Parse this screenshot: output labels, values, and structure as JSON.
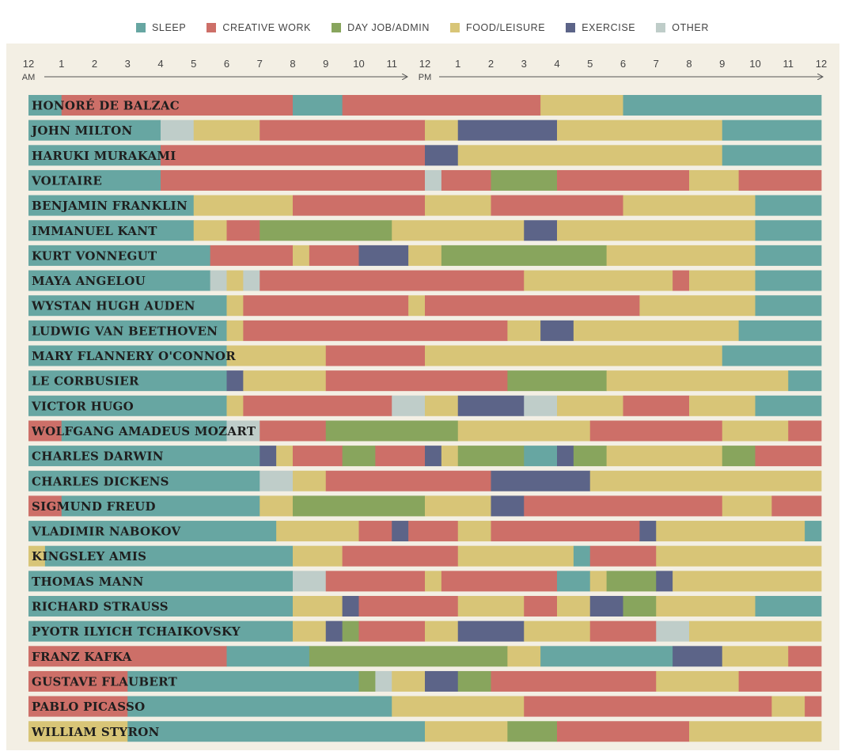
{
  "legend": [
    {
      "key": "S",
      "label": "SLEEP",
      "color": "#67a6a2"
    },
    {
      "key": "C",
      "label": "CREATIVE WORK",
      "color": "#cd6f68"
    },
    {
      "key": "D",
      "label": "DAY JOB/ADMIN",
      "color": "#88a55d"
    },
    {
      "key": "F",
      "label": "FOOD/LEISURE",
      "color": "#d8c577"
    },
    {
      "key": "E",
      "label": "EXERCISE",
      "color": "#5c6488"
    },
    {
      "key": "O",
      "label": "OTHER",
      "color": "#bfcdc9"
    }
  ],
  "chart_data": {
    "type": "timeline",
    "x_unit": "hour of day (0-24)",
    "xlim": [
      0,
      24
    ],
    "hour_ticks": [
      "12",
      "1",
      "2",
      "3",
      "4",
      "5",
      "6",
      "7",
      "8",
      "9",
      "10",
      "11",
      "12",
      "1",
      "2",
      "3",
      "4",
      "5",
      "6",
      "7",
      "8",
      "9",
      "10",
      "11",
      "12"
    ],
    "am_label": "AM",
    "pm_label": "PM",
    "rows": [
      {
        "name": "HONORÉ DE BALZAC",
        "segments": [
          [
            "S",
            0,
            1
          ],
          [
            "C",
            1,
            8
          ],
          [
            "S",
            8,
            9.5
          ],
          [
            "C",
            9.5,
            15.5
          ],
          [
            "F",
            15.5,
            18
          ],
          [
            "S",
            18,
            24
          ]
        ]
      },
      {
        "name": "JOHN MILTON",
        "segments": [
          [
            "S",
            0,
            4
          ],
          [
            "O",
            4,
            5
          ],
          [
            "F",
            5,
            7
          ],
          [
            "C",
            7,
            12
          ],
          [
            "F",
            12,
            13
          ],
          [
            "E",
            13,
            16
          ],
          [
            "F",
            16,
            21
          ],
          [
            "S",
            21,
            24
          ]
        ]
      },
      {
        "name": "HARUKI MURAKAMI",
        "segments": [
          [
            "S",
            0,
            4
          ],
          [
            "C",
            4,
            12
          ],
          [
            "E",
            12,
            13
          ],
          [
            "F",
            13,
            21
          ],
          [
            "S",
            21,
            24
          ]
        ]
      },
      {
        "name": "VOLTAIRE",
        "segments": [
          [
            "S",
            0,
            4
          ],
          [
            "C",
            4,
            12
          ],
          [
            "O",
            12,
            12.5
          ],
          [
            "C",
            12.5,
            14
          ],
          [
            "D",
            14,
            16
          ],
          [
            "C",
            16,
            20
          ],
          [
            "F",
            20,
            21.5
          ],
          [
            "C",
            21.5,
            24
          ]
        ]
      },
      {
        "name": "BENJAMIN FRANKLIN",
        "segments": [
          [
            "S",
            0,
            5
          ],
          [
            "F",
            5,
            8
          ],
          [
            "C",
            8,
            12
          ],
          [
            "F",
            12,
            14
          ],
          [
            "C",
            14,
            18
          ],
          [
            "F",
            18,
            22
          ],
          [
            "S",
            22,
            24
          ]
        ]
      },
      {
        "name": "IMMANUEL KANT",
        "segments": [
          [
            "S",
            0,
            5
          ],
          [
            "F",
            5,
            6
          ],
          [
            "C",
            6,
            7
          ],
          [
            "D",
            7,
            11
          ],
          [
            "F",
            11,
            15
          ],
          [
            "E",
            15,
            16
          ],
          [
            "F",
            16,
            22
          ],
          [
            "S",
            22,
            24
          ]
        ]
      },
      {
        "name": "KURT VONNEGUT",
        "segments": [
          [
            "S",
            0,
            5.5
          ],
          [
            "C",
            5.5,
            8
          ],
          [
            "F",
            8,
            8.5
          ],
          [
            "C",
            8.5,
            10
          ],
          [
            "E",
            10,
            11.5
          ],
          [
            "F",
            11.5,
            12.5
          ],
          [
            "D",
            12.5,
            17.5
          ],
          [
            "F",
            17.5,
            22
          ],
          [
            "S",
            22,
            24
          ]
        ]
      },
      {
        "name": "MAYA ANGELOU",
        "segments": [
          [
            "S",
            0,
            5.5
          ],
          [
            "O",
            5.5,
            6
          ],
          [
            "F",
            6,
            6.5
          ],
          [
            "O",
            6.5,
            7
          ],
          [
            "C",
            7,
            15
          ],
          [
            "F",
            15,
            19.5
          ],
          [
            "C",
            19.5,
            20
          ],
          [
            "F",
            20,
            22
          ],
          [
            "S",
            22,
            24
          ]
        ]
      },
      {
        "name": "WYSTAN HUGH AUDEN",
        "segments": [
          [
            "S",
            0,
            6
          ],
          [
            "F",
            6,
            6.5
          ],
          [
            "C",
            6.5,
            11.5
          ],
          [
            "F",
            11.5,
            12
          ],
          [
            "C",
            12,
            18.5
          ],
          [
            "F",
            18.5,
            22
          ],
          [
            "S",
            22,
            24
          ]
        ]
      },
      {
        "name": "LUDWIG VAN BEETHOVEN",
        "segments": [
          [
            "S",
            0,
            6
          ],
          [
            "F",
            6,
            6.5
          ],
          [
            "C",
            6.5,
            14.5
          ],
          [
            "F",
            14.5,
            15.5
          ],
          [
            "E",
            15.5,
            16.5
          ],
          [
            "F",
            16.5,
            21.5
          ],
          [
            "S",
            21.5,
            24
          ]
        ]
      },
      {
        "name": "MARY FLANNERY O'CONNOR",
        "segments": [
          [
            "S",
            0,
            6
          ],
          [
            "F",
            6,
            9
          ],
          [
            "C",
            9,
            12
          ],
          [
            "F",
            12,
            21
          ],
          [
            "S",
            21,
            24
          ]
        ]
      },
      {
        "name": "LE CORBUSIER",
        "segments": [
          [
            "S",
            0,
            6
          ],
          [
            "E",
            6,
            6.5
          ],
          [
            "F",
            6.5,
            9
          ],
          [
            "C",
            9,
            14.5
          ],
          [
            "D",
            14.5,
            17.5
          ],
          [
            "F",
            17.5,
            23
          ],
          [
            "S",
            23,
            24
          ]
        ]
      },
      {
        "name": "VICTOR HUGO",
        "segments": [
          [
            "S",
            0,
            6
          ],
          [
            "F",
            6,
            6.5
          ],
          [
            "C",
            6.5,
            11
          ],
          [
            "O",
            11,
            12
          ],
          [
            "F",
            12,
            13
          ],
          [
            "E",
            13,
            15
          ],
          [
            "O",
            15,
            16
          ],
          [
            "F",
            16,
            18
          ],
          [
            "C",
            18,
            20
          ],
          [
            "F",
            20,
            22
          ],
          [
            "S",
            22,
            24
          ]
        ]
      },
      {
        "name": "WOLFGANG AMADEUS MOZART",
        "segments": [
          [
            "C",
            0,
            1
          ],
          [
            "S",
            1,
            6
          ],
          [
            "O",
            6,
            7
          ],
          [
            "C",
            7,
            9
          ],
          [
            "D",
            9,
            13
          ],
          [
            "F",
            13,
            17
          ],
          [
            "C",
            17,
            21
          ],
          [
            "F",
            21,
            23
          ],
          [
            "C",
            23,
            24
          ]
        ]
      },
      {
        "name": "CHARLES DARWIN",
        "segments": [
          [
            "S",
            0,
            7
          ],
          [
            "E",
            7,
            7.5
          ],
          [
            "F",
            7.5,
            8
          ],
          [
            "C",
            8,
            9.5
          ],
          [
            "D",
            9.5,
            10.5
          ],
          [
            "C",
            10.5,
            12
          ],
          [
            "E",
            12,
            12.5
          ],
          [
            "F",
            12.5,
            13
          ],
          [
            "D",
            13,
            15
          ],
          [
            "S",
            15,
            16
          ],
          [
            "E",
            16,
            16.5
          ],
          [
            "D",
            16.5,
            17.5
          ],
          [
            "F",
            17.5,
            21
          ],
          [
            "D",
            21,
            22
          ],
          [
            "C",
            22,
            24
          ]
        ]
      },
      {
        "name": "CHARLES DICKENS",
        "segments": [
          [
            "S",
            0,
            7
          ],
          [
            "O",
            7,
            8
          ],
          [
            "F",
            8,
            9
          ],
          [
            "C",
            9,
            14
          ],
          [
            "E",
            14,
            17
          ],
          [
            "F",
            17,
            24
          ]
        ]
      },
      {
        "name": "SIGMUND FREUD",
        "segments": [
          [
            "C",
            0,
            1
          ],
          [
            "S",
            1,
            7
          ],
          [
            "F",
            7,
            8
          ],
          [
            "D",
            8,
            12
          ],
          [
            "F",
            12,
            14
          ],
          [
            "E",
            14,
            15
          ],
          [
            "C",
            15,
            21
          ],
          [
            "F",
            21,
            22.5
          ],
          [
            "C",
            22.5,
            24
          ]
        ]
      },
      {
        "name": "VLADIMIR NABOKOV",
        "segments": [
          [
            "S",
            0,
            7.5
          ],
          [
            "F",
            7.5,
            10
          ],
          [
            "C",
            10,
            11
          ],
          [
            "E",
            11,
            11.5
          ],
          [
            "C",
            11.5,
            13
          ],
          [
            "F",
            13,
            14
          ],
          [
            "C",
            14,
            18.5
          ],
          [
            "E",
            18.5,
            19
          ],
          [
            "F",
            19,
            23.5
          ],
          [
            "S",
            23.5,
            24
          ]
        ]
      },
      {
        "name": "KINGSLEY AMIS",
        "segments": [
          [
            "F",
            0,
            0.5
          ],
          [
            "S",
            0.5,
            8
          ],
          [
            "F",
            8,
            9.5
          ],
          [
            "C",
            9.5,
            13
          ],
          [
            "F",
            13,
            16.5
          ],
          [
            "S",
            16.5,
            17
          ],
          [
            "C",
            17,
            19
          ],
          [
            "F",
            19,
            24
          ]
        ]
      },
      {
        "name": "THOMAS MANN",
        "segments": [
          [
            "S",
            0,
            8
          ],
          [
            "O",
            8,
            9
          ],
          [
            "C",
            9,
            12
          ],
          [
            "F",
            12,
            12.5
          ],
          [
            "C",
            12.5,
            16
          ],
          [
            "S",
            16,
            17
          ],
          [
            "F",
            17,
            17.5
          ],
          [
            "D",
            17.5,
            19
          ],
          [
            "E",
            19,
            19.5
          ],
          [
            "F",
            19.5,
            24
          ]
        ]
      },
      {
        "name": "RICHARD STRAUSS",
        "segments": [
          [
            "S",
            0,
            8
          ],
          [
            "F",
            8,
            9.5
          ],
          [
            "E",
            9.5,
            10
          ],
          [
            "C",
            10,
            13
          ],
          [
            "F",
            13,
            15
          ],
          [
            "C",
            15,
            16
          ],
          [
            "F",
            16,
            17
          ],
          [
            "E",
            17,
            18
          ],
          [
            "D",
            18,
            19
          ],
          [
            "F",
            19,
            22
          ],
          [
            "S",
            22,
            24
          ]
        ]
      },
      {
        "name": "PYOTR ILYICH TCHAIKOVSKY",
        "segments": [
          [
            "S",
            0,
            8
          ],
          [
            "F",
            8,
            9
          ],
          [
            "E",
            9,
            9.5
          ],
          [
            "D",
            9.5,
            10
          ],
          [
            "C",
            10,
            12
          ],
          [
            "F",
            12,
            13
          ],
          [
            "E",
            13,
            15
          ],
          [
            "F",
            15,
            17
          ],
          [
            "C",
            17,
            19
          ],
          [
            "O",
            19,
            20
          ],
          [
            "F",
            20,
            24
          ]
        ]
      },
      {
        "name": "FRANZ KAFKA",
        "segments": [
          [
            "C",
            0,
            6
          ],
          [
            "S",
            6,
            8.5
          ],
          [
            "D",
            8.5,
            14.5
          ],
          [
            "F",
            14.5,
            15.5
          ],
          [
            "S",
            15.5,
            19.5
          ],
          [
            "E",
            19.5,
            21
          ],
          [
            "F",
            21,
            23
          ],
          [
            "C",
            23,
            24
          ]
        ]
      },
      {
        "name": "GUSTAVE FLAUBERT",
        "segments": [
          [
            "C",
            0,
            3
          ],
          [
            "S",
            3,
            10
          ],
          [
            "D",
            10,
            10.5
          ],
          [
            "O",
            10.5,
            11
          ],
          [
            "F",
            11,
            12
          ],
          [
            "E",
            12,
            13
          ],
          [
            "D",
            13,
            14
          ],
          [
            "C",
            14,
            19
          ],
          [
            "F",
            19,
            21.5
          ],
          [
            "C",
            21.5,
            24
          ]
        ]
      },
      {
        "name": "PABLO PICASSO",
        "segments": [
          [
            "C",
            0,
            3
          ],
          [
            "S",
            3,
            11
          ],
          [
            "F",
            11,
            15
          ],
          [
            "C",
            15,
            22.5
          ],
          [
            "F",
            22.5,
            23.5
          ],
          [
            "C",
            23.5,
            24
          ]
        ]
      },
      {
        "name": "WILLIAM STYRON",
        "segments": [
          [
            "F",
            0,
            3
          ],
          [
            "S",
            3,
            12
          ],
          [
            "F",
            12,
            14.5
          ],
          [
            "D",
            14.5,
            16
          ],
          [
            "C",
            16,
            20
          ],
          [
            "F",
            20,
            24
          ]
        ]
      }
    ]
  }
}
